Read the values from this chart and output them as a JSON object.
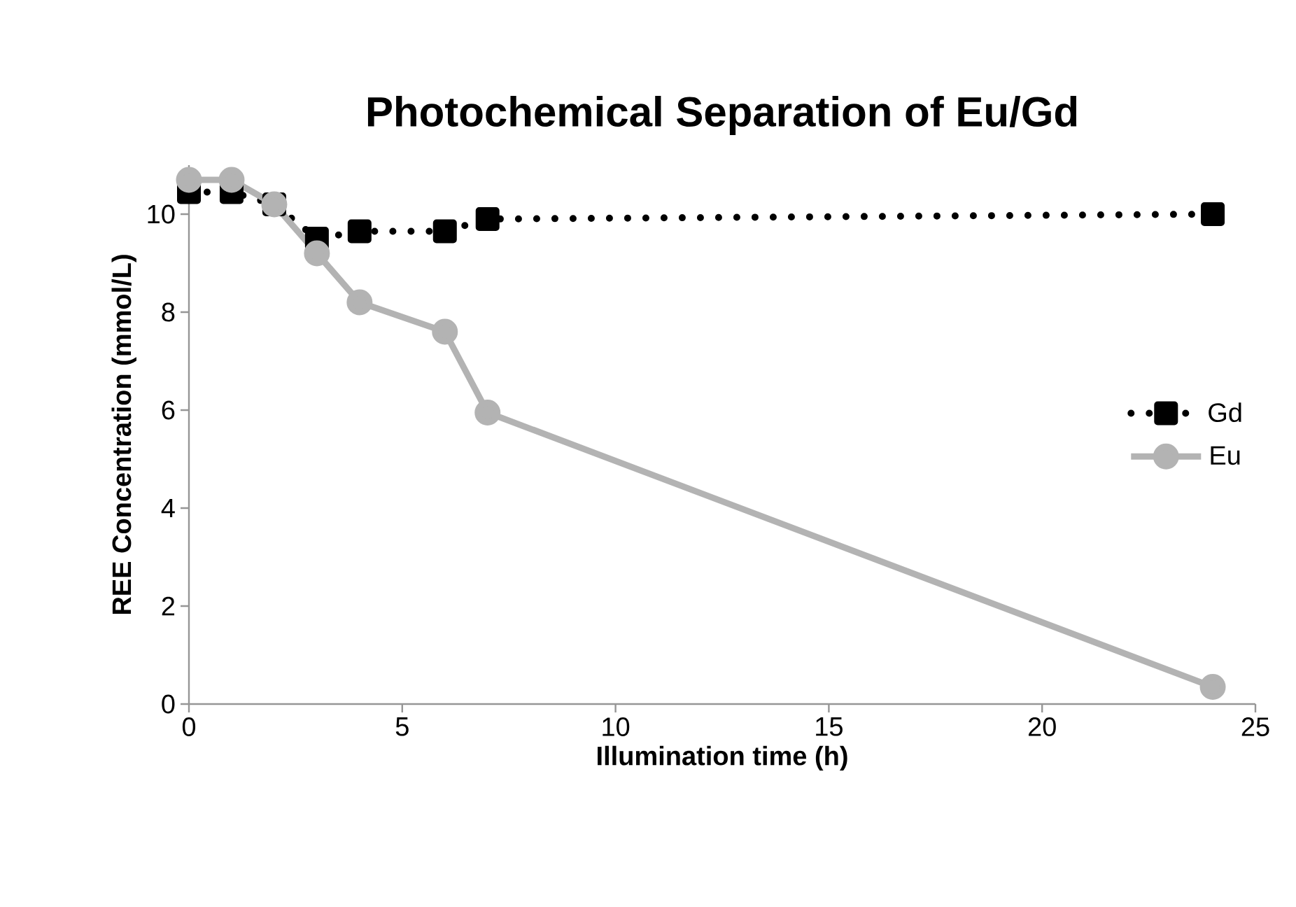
{
  "chart_data": {
    "type": "line",
    "title": "Photochemical Separation of Eu/Gd",
    "xlabel": "Illumination time (h)",
    "ylabel": "REE Concentration (mmol/L)",
    "x": [
      0,
      1,
      2,
      3,
      4,
      6,
      7,
      24
    ],
    "series": [
      {
        "name": "Gd",
        "color": "#000000",
        "marker": "square",
        "line_style": "dotted",
        "values": [
          10.45,
          10.45,
          10.2,
          9.5,
          9.65,
          9.65,
          9.9,
          10.0
        ]
      },
      {
        "name": "Eu",
        "color": "#b3b3b3",
        "marker": "circle",
        "line_style": "solid",
        "values": [
          10.7,
          10.7,
          10.2,
          9.2,
          8.2,
          7.6,
          5.95,
          0.35
        ]
      }
    ],
    "xlim": [
      0,
      25
    ],
    "xticks": [
      0,
      5,
      10,
      15,
      20,
      25
    ],
    "ylim": [
      0,
      11
    ],
    "yticks": [
      0,
      2,
      4,
      6,
      8,
      10
    ],
    "grid": false,
    "legend": "right"
  }
}
